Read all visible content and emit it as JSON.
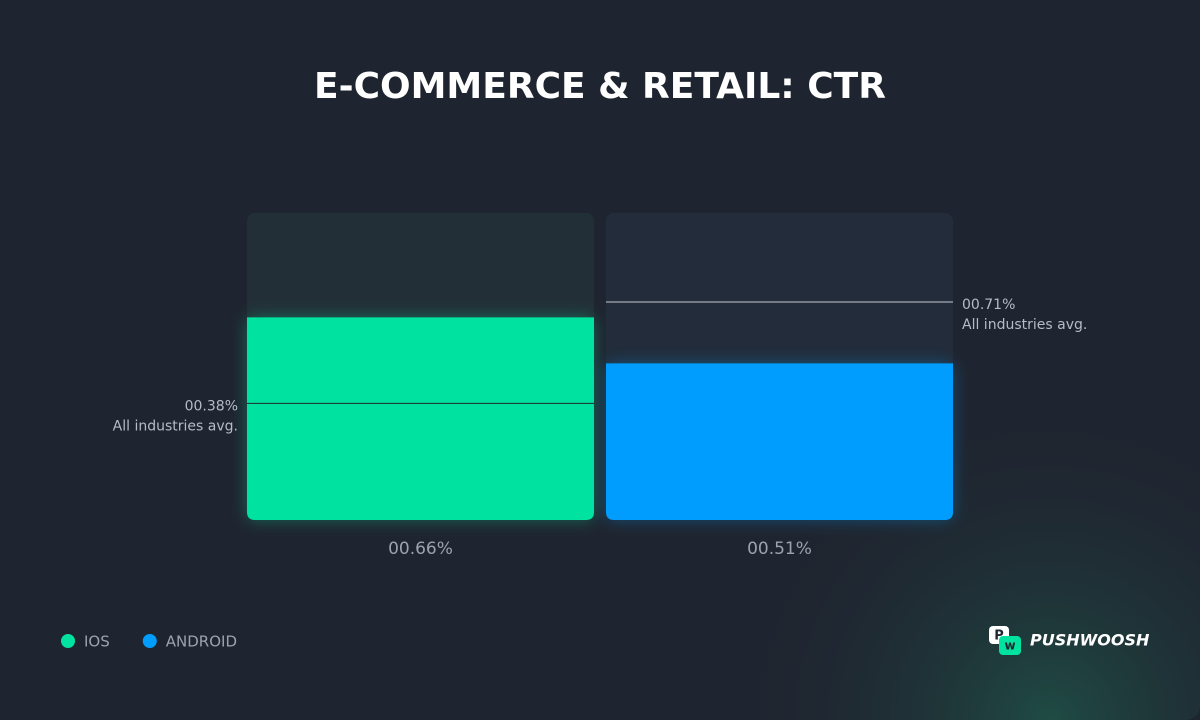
{
  "chart_data": {
    "type": "bar",
    "title": "E-COMMERCE & RETAIL: CTR",
    "categories": [
      "IOS",
      "ANDROID"
    ],
    "values": [
      0.66,
      0.51
    ],
    "value_labels": [
      "00.66%",
      "00.51%"
    ],
    "colors": [
      "#00e3a0",
      "#009dff"
    ],
    "reference_lines": [
      {
        "value": 0.38,
        "label": "00.38%",
        "note": "All industries avg."
      },
      {
        "value": 0.71,
        "label": "00.71%",
        "note": "All industries avg."
      }
    ],
    "ylim": [
      0,
      1
    ],
    "legend": "bottom-left",
    "brand": "PUSHWOOSH"
  }
}
